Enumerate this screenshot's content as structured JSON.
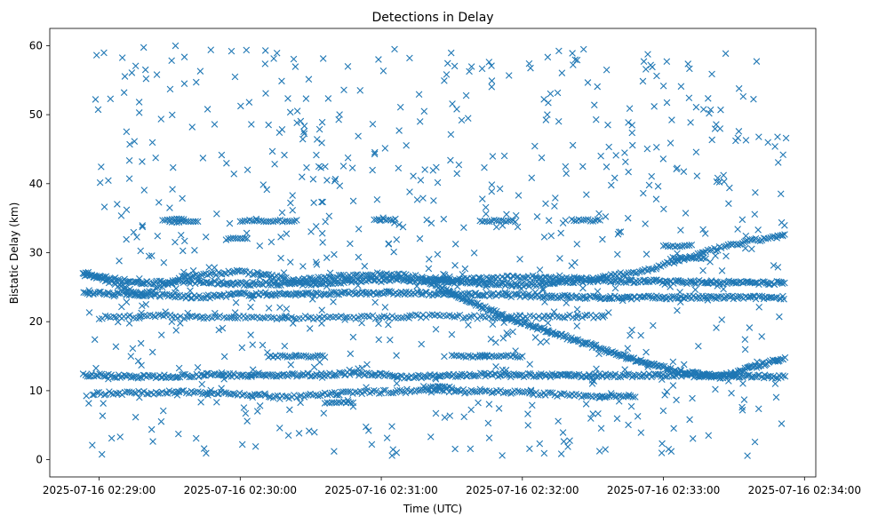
{
  "chart_data": {
    "type": "scatter",
    "title": "Detections in Delay",
    "xlabel": "Time (UTC)",
    "ylabel": "Bistatic Delay (km)",
    "marker": "x",
    "color": "#1f77b4",
    "xlim_minutes": [
      28.65,
      34.08
    ],
    "ylim": [
      -2.5,
      62.5
    ],
    "x_ticks": [
      {
        "minute": 29,
        "label": "2025-07-16 02:29:00"
      },
      {
        "minute": 30,
        "label": "2025-07-16 02:30:00"
      },
      {
        "minute": 31,
        "label": "2025-07-16 02:31:00"
      },
      {
        "minute": 32,
        "label": "2025-07-16 02:32:00"
      },
      {
        "minute": 33,
        "label": "2025-07-16 02:33:00"
      },
      {
        "minute": 34,
        "label": "2025-07-16 02:34:00"
      }
    ],
    "y_ticks": [
      0,
      10,
      20,
      30,
      40,
      50,
      60
    ],
    "data_range": {
      "x_start_minute": 28.89,
      "x_end_minute": 33.87
    },
    "tracks": [
      {
        "name": "track-1",
        "points": [
          [
            28.89,
            26.8
          ],
          [
            29.3,
            25.6
          ],
          [
            29.6,
            25.8
          ],
          [
            30.0,
            25.5
          ],
          [
            30.5,
            25.5
          ],
          [
            31.0,
            26.2
          ],
          [
            31.5,
            25.8
          ],
          [
            32.0,
            25.3
          ],
          [
            32.5,
            26.0
          ],
          [
            33.0,
            25.8
          ],
          [
            33.87,
            25.6
          ]
        ],
        "density": 9
      },
      {
        "name": "track-2",
        "points": [
          [
            28.89,
            24.2
          ],
          [
            29.3,
            24.0
          ],
          [
            29.7,
            23.5
          ],
          [
            30.0,
            24.0
          ],
          [
            30.5,
            24.0
          ],
          [
            31.0,
            24.2
          ],
          [
            31.5,
            24.0
          ],
          [
            32.0,
            23.8
          ],
          [
            32.5,
            23.5
          ],
          [
            33.0,
            23.5
          ],
          [
            33.87,
            23.5
          ]
        ],
        "density": 8
      },
      {
        "name": "rising-track",
        "points": [
          [
            28.89,
            27.2
          ],
          [
            29.3,
            23.8
          ],
          [
            29.6,
            26.5
          ],
          [
            30.0,
            27.3
          ],
          [
            30.4,
            26.0
          ],
          [
            31.0,
            27.0
          ],
          [
            31.5,
            26.0
          ],
          [
            32.0,
            26.5
          ],
          [
            32.5,
            26.2
          ],
          [
            32.9,
            27.5
          ],
          [
            33.2,
            29.5
          ],
          [
            33.5,
            31.2
          ],
          [
            33.87,
            32.6
          ]
        ],
        "density": 7
      },
      {
        "name": "diagonal-track",
        "points": [
          [
            31.3,
            26.0
          ],
          [
            31.6,
            23.2
          ],
          [
            31.9,
            20.5
          ],
          [
            32.2,
            18.5
          ],
          [
            32.5,
            16.5
          ],
          [
            32.8,
            14.5
          ],
          [
            33.1,
            12.8
          ],
          [
            33.4,
            12.0
          ],
          [
            33.6,
            13.2
          ],
          [
            33.87,
            14.8
          ]
        ],
        "density": 11
      },
      {
        "name": "low-track-1",
        "points": [
          [
            28.89,
            12.3
          ],
          [
            29.3,
            12.0
          ],
          [
            29.8,
            12.3
          ],
          [
            30.3,
            12.2
          ],
          [
            30.8,
            12.5
          ],
          [
            31.2,
            12.0
          ],
          [
            31.7,
            12.3
          ],
          [
            32.2,
            12.2
          ],
          [
            32.7,
            12.2
          ],
          [
            33.2,
            12.2
          ],
          [
            33.87,
            12.0
          ]
        ],
        "density": 8
      },
      {
        "name": "low-track-2",
        "points": [
          [
            28.95,
            9.6
          ],
          [
            29.3,
            9.7
          ],
          [
            29.8,
            9.8
          ],
          [
            30.3,
            9.0
          ],
          [
            30.8,
            9.7
          ],
          [
            31.2,
            10.0
          ],
          [
            31.7,
            10.0
          ],
          [
            32.2,
            9.5
          ],
          [
            32.6,
            9.0
          ]
        ],
        "density": 6
      },
      {
        "name": "mid-segments",
        "points": [
          [
            29.0,
            20.6
          ],
          [
            29.4,
            20.8
          ],
          [
            29.8,
            20.6
          ],
          [
            30.4,
            20.6
          ],
          [
            30.8,
            20.6
          ],
          [
            31.3,
            20.8
          ],
          [
            31.9,
            20.6
          ],
          [
            32.4,
            20.8
          ],
          [
            32.6,
            20.7
          ]
        ],
        "density": 5
      }
    ],
    "horizontal_segments": [
      {
        "x0": 30.0,
        "x1": 30.4,
        "y": 34.6
      },
      {
        "x0": 29.45,
        "x1": 29.6,
        "y": 34.8
      },
      {
        "x0": 30.6,
        "x1": 30.8,
        "y": 8.3
      },
      {
        "x0": 31.7,
        "x1": 32.0,
        "y": 15.0
      },
      {
        "x0": 31.5,
        "x1": 31.75,
        "y": 15.0
      },
      {
        "x0": 30.2,
        "x1": 30.6,
        "y": 15.0
      },
      {
        "x0": 32.55,
        "x1": 32.8,
        "y": 9.2
      },
      {
        "x0": 33.05,
        "x1": 33.3,
        "y": 29.2
      },
      {
        "x0": 33.0,
        "x1": 33.2,
        "y": 31.0
      },
      {
        "x0": 31.7,
        "x1": 31.95,
        "y": 34.6
      },
      {
        "x0": 31.3,
        "x1": 31.5,
        "y": 10.5
      },
      {
        "x0": 29.5,
        "x1": 29.7,
        "y": 34.5
      },
      {
        "x0": 29.9,
        "x1": 30.05,
        "y": 32.0
      },
      {
        "x0": 30.95,
        "x1": 31.1,
        "y": 34.8
      },
      {
        "x0": 32.35,
        "x1": 32.55,
        "y": 34.7
      }
    ],
    "noise": {
      "count": 760,
      "y_range": [
        0.5,
        60
      ],
      "seed": 7
    }
  }
}
